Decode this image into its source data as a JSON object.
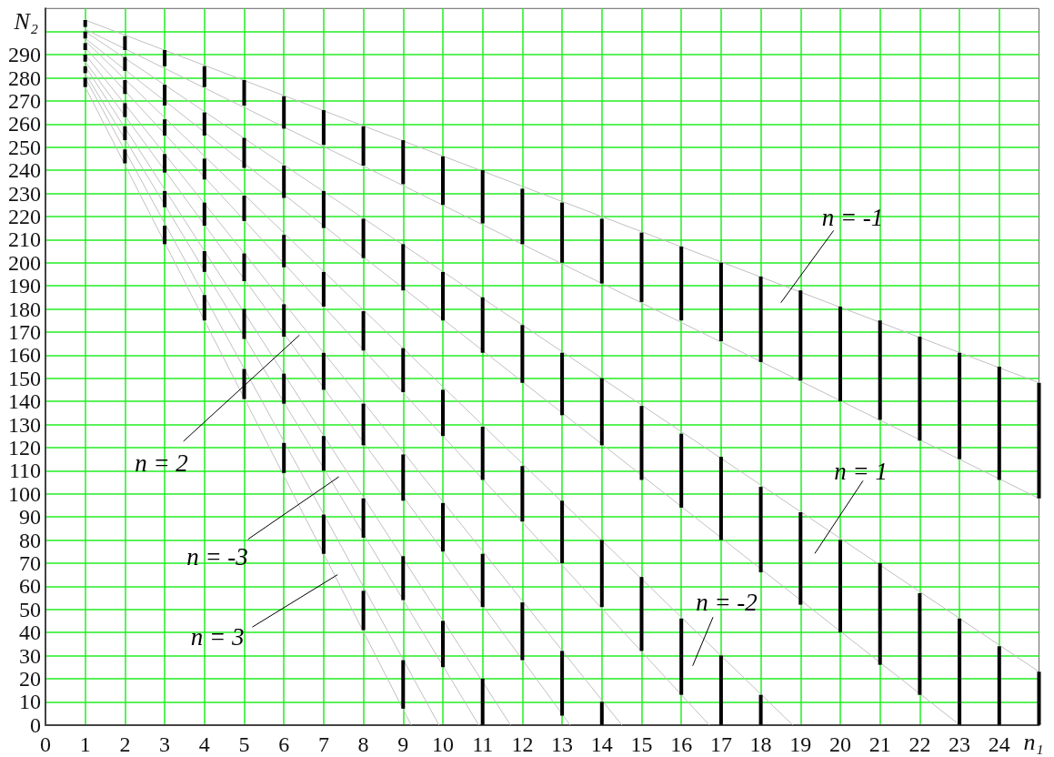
{
  "chart_data": {
    "type": "bar",
    "xlabel": "n₁",
    "ylabel": "N₂",
    "xlim": [
      0,
      25
    ],
    "ylim": [
      0,
      310
    ],
    "xticks": [
      0,
      1,
      2,
      3,
      4,
      5,
      6,
      7,
      8,
      9,
      10,
      11,
      12,
      13,
      14,
      15,
      16,
      17,
      18,
      19,
      20,
      21,
      22,
      23,
      24
    ],
    "yticks": [
      0,
      10,
      20,
      30,
      40,
      50,
      60,
      70,
      80,
      90,
      100,
      110,
      120,
      130,
      140,
      150,
      160,
      170,
      180,
      190,
      200,
      210,
      220,
      230,
      240,
      250,
      260,
      270,
      280,
      290,
      {
        "value": 300,
        "label": null
      }
    ],
    "grid": true,
    "annotations": [
      "n = -1",
      "n = 1",
      "n = -2",
      "n = 2",
      "n = -3",
      {
        "text": "n = 3",
        "x": 7.35,
        "y": 65
      }
    ],
    "series": [
      {
        "type": "line",
        "color": "#c0c0c0",
        "x": [
          1,
          25
        ],
        "values": [
          305,
          148
        ]
      },
      {
        "type": "line",
        "color": "#c0c0c0",
        "x": [
          1,
          25
        ],
        "values": [
          301,
          98
        ]
      },
      {
        "type": "line",
        "color": "#c0c0c0",
        "x": [
          1,
          25
        ],
        "values": [
          300,
          23
        ]
      },
      {
        "type": "line",
        "color": "#c0c0c0",
        "x": [
          1,
          23
        ],
        "values": [
          297,
          0
        ]
      },
      {
        "type": "line",
        "color": "#c0c0c0",
        "x": [
          1,
          18.8
        ],
        "values": [
          296,
          0
        ]
      },
      {
        "type": "line",
        "color": "#c0c0c0",
        "x": [
          1,
          16.7
        ],
        "values": [
          293,
          0
        ]
      },
      {
        "type": "line",
        "color": "#c0c0c0",
        "x": [
          1,
          14.5
        ],
        "values": [
          290,
          0
        ]
      },
      {
        "type": "line",
        "color": "#c0c0c0",
        "x": [
          1,
          13.2
        ],
        "values": [
          287,
          0
        ]
      },
      {
        "type": "line",
        "color": "#c0c0c0",
        "x": [
          1,
          11.7
        ],
        "values": [
          285,
          0
        ]
      },
      {
        "type": "line",
        "color": "#c0c0c0",
        "x": [
          1,
          10.9
        ],
        "values": [
          282,
          0
        ]
      },
      {
        "type": "line",
        "color": "#c0c0c0",
        "x": [
          1,
          9.9
        ],
        "values": [
          280,
          0
        ]
      },
      {
        "type": "line",
        "color": "#c0c0c0",
        "x": [
          1,
          9.2
        ],
        "values": [
          276,
          0
        ]
      },
      {
        "color": "#000000",
        "x": [
          1,
          2,
          3,
          4,
          5,
          6,
          7,
          8,
          9,
          10,
          11,
          12,
          13,
          14,
          15,
          16,
          17,
          18,
          19,
          20,
          21,
          22,
          23,
          24,
          25
        ],
        "base": [
          302,
          292,
          285,
          276,
          268,
          258,
          251,
          242,
          234,
          225,
          217,
          208,
          200,
          191,
          183,
          175,
          166,
          157,
          149,
          140,
          132,
          123,
          115,
          106,
          98
        ],
        "values": [
          3,
          6,
          7,
          9,
          11,
          14,
          15,
          17,
          19,
          21,
          23,
          24,
          26,
          28,
          30,
          32,
          34,
          37,
          39,
          41,
          43,
          45,
          46,
          49,
          50
        ]
      },
      {
        "color": "#000000",
        "x": [
          1,
          2,
          3,
          4,
          5,
          6,
          7,
          8,
          9,
          10,
          11,
          12,
          13,
          14,
          15,
          16,
          17,
          18,
          19,
          20,
          21,
          22,
          23,
          24,
          25
        ],
        "base": [
          297,
          283,
          268,
          255,
          241,
          228,
          215,
          202,
          188,
          175,
          161,
          148,
          134,
          121,
          106,
          94,
          80,
          66,
          52,
          40,
          26,
          13,
          0,
          0,
          0
        ],
        "values": [
          3,
          6,
          9,
          10,
          13,
          14,
          16,
          17,
          20,
          21,
          24,
          25,
          27,
          29,
          32,
          32,
          36,
          37,
          40,
          40,
          44,
          44,
          46,
          34,
          23
        ]
      },
      {
        "color": "#000000",
        "x": [
          1,
          2,
          3,
          4,
          5,
          6,
          7,
          8,
          9,
          10,
          11,
          12,
          13,
          14,
          15,
          16,
          17,
          18
        ],
        "base": [
          292,
          273,
          255,
          236,
          218,
          198,
          181,
          162,
          144,
          125,
          106,
          88,
          70,
          51,
          32,
          13,
          0,
          0
        ],
        "values": [
          3,
          6,
          7,
          9,
          11,
          14,
          15,
          17,
          19,
          20,
          23,
          24,
          27,
          29,
          32,
          33,
          30,
          13
        ]
      },
      {
        "color": "#000000",
        "x": [
          1,
          2,
          3,
          4,
          5,
          6,
          7,
          8,
          9,
          10,
          11,
          12,
          13,
          14
        ],
        "base": [
          287,
          263,
          239,
          216,
          192,
          168,
          145,
          121,
          97,
          75,
          51,
          28,
          4,
          0
        ],
        "values": [
          3,
          6,
          8,
          10,
          12,
          14,
          16,
          18,
          20,
          21,
          23,
          25,
          28,
          10
        ]
      },
      {
        "color": "#000000",
        "x": [
          1,
          2,
          3,
          4,
          5,
          6,
          7,
          8,
          9,
          10,
          11
        ],
        "base": [
          282,
          253,
          224,
          196,
          167,
          139,
          110,
          81,
          54,
          25,
          0
        ],
        "values": [
          3,
          6,
          7,
          9,
          13,
          13,
          15,
          17,
          19,
          20,
          20
        ]
      },
      {
        "color": "#000000",
        "x": [
          1,
          2,
          3,
          4,
          5,
          6,
          7,
          8,
          9
        ],
        "base": [
          276,
          243,
          208,
          175,
          141,
          109,
          74,
          41,
          7
        ],
        "values": [
          4,
          6,
          8,
          11,
          13,
          13,
          17,
          17,
          21
        ]
      }
    ]
  }
}
